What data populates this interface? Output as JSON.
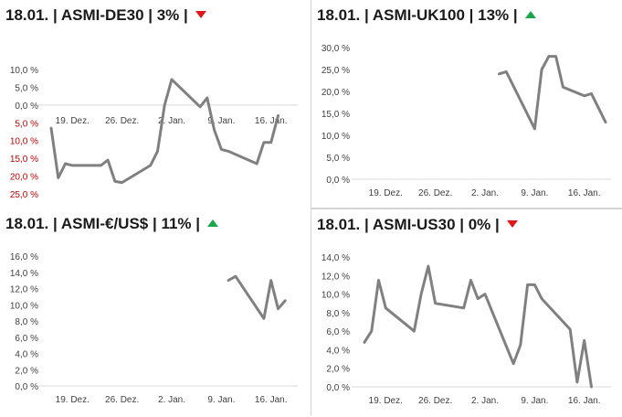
{
  "colors": {
    "line": "#808080",
    "up": "#1aa64a",
    "down": "#e01818",
    "negative_tick": "#c00000",
    "axis": "#d9d9d9"
  },
  "chart_data": [
    {
      "type": "line",
      "title": "18.01. | ASMI-DE30 | 3% |",
      "trend": "down",
      "trend_icon": "down-triangle-icon",
      "ylim": [
        -25,
        10
      ],
      "y_tick_values": [
        10,
        5,
        0,
        -5,
        -10,
        -15,
        -20,
        -25
      ],
      "y_tick_labels": [
        "10,0 %",
        "5,0 %",
        "0,0 %",
        "5,0 %",
        "10,0 %",
        "15,0 %",
        "20,0 %",
        "25,0 %"
      ],
      "negative_ticks_red": true,
      "x_range": [
        "2022-12-16",
        "2023-01-19"
      ],
      "x_ticks": [
        {
          "date": "2022-12-19",
          "label": "19. Dez."
        },
        {
          "date": "2022-12-26",
          "label": "26. Dez."
        },
        {
          "date": "2023-01-02",
          "label": "2. Jan."
        },
        {
          "date": "2023-01-09",
          "label": "9. Jan."
        },
        {
          "date": "2023-01-16",
          "label": "16. Jan."
        }
      ],
      "series": [
        {
          "points": [
            {
              "x": "2022-12-16",
              "y": -6.5
            },
            {
              "x": "2022-12-17",
              "y": -20.5
            },
            {
              "x": "2022-12-18",
              "y": -16.5
            },
            {
              "x": "2022-12-19",
              "y": -17.0
            },
            {
              "x": "2022-12-23",
              "y": -17.0
            },
            {
              "x": "2022-12-24",
              "y": -15.5
            },
            {
              "x": "2022-12-25",
              "y": -21.5
            },
            {
              "x": "2022-12-26",
              "y": -21.8
            },
            {
              "x": "2022-12-30",
              "y": -17.0
            },
            {
              "x": "2022-12-31",
              "y": -13.0
            },
            {
              "x": "2023-01-01",
              "y": 0.0
            },
            {
              "x": "2023-01-02",
              "y": 7.2
            },
            {
              "x": "2023-01-06",
              "y": -0.5
            },
            {
              "x": "2023-01-07",
              "y": 2.0
            },
            {
              "x": "2023-01-08",
              "y": -7.0
            },
            {
              "x": "2023-01-09",
              "y": -12.5
            },
            {
              "x": "2023-01-10",
              "y": -13.0
            },
            {
              "x": "2023-01-14",
              "y": -16.5
            },
            {
              "x": "2023-01-15",
              "y": -10.5
            },
            {
              "x": "2023-01-16",
              "y": -10.5
            },
            {
              "x": "2023-01-17",
              "y": -3.0
            }
          ]
        }
      ]
    },
    {
      "type": "line",
      "title": "18.01. | ASMI-UK100 | 13% |",
      "trend": "up",
      "trend_icon": "up-triangle-icon",
      "ylim": [
        0,
        30
      ],
      "y_tick_values": [
        30,
        25,
        20,
        15,
        10,
        5,
        0
      ],
      "y_tick_labels": [
        "30,0 %",
        "25,0 %",
        "20,0 %",
        "15,0 %",
        "10,0 %",
        "5,0 %",
        "0,0 %"
      ],
      "negative_ticks_red": false,
      "x_range": [
        "2022-12-16",
        "2023-01-19"
      ],
      "x_ticks": [
        {
          "date": "2022-12-19",
          "label": "19. Dez."
        },
        {
          "date": "2022-12-26",
          "label": "26. Dez."
        },
        {
          "date": "2023-01-02",
          "label": "2. Jan."
        },
        {
          "date": "2023-01-09",
          "label": "9. Jan."
        },
        {
          "date": "2023-01-16",
          "label": "16. Jan."
        }
      ],
      "series": [
        {
          "points": [
            {
              "x": "2023-01-04",
              "y": 24.0
            },
            {
              "x": "2023-01-05",
              "y": 24.5
            },
            {
              "x": "2023-01-09",
              "y": 11.5
            },
            {
              "x": "2023-01-10",
              "y": 25.0
            },
            {
              "x": "2023-01-11",
              "y": 28.0
            },
            {
              "x": "2023-01-12",
              "y": 28.0
            },
            {
              "x": "2023-01-13",
              "y": 21.0
            },
            {
              "x": "2023-01-16",
              "y": 19.0
            },
            {
              "x": "2023-01-17",
              "y": 19.5
            },
            {
              "x": "2023-01-19",
              "y": 13.0
            }
          ]
        }
      ]
    },
    {
      "type": "line",
      "title": "18.01. | ASMI-€/US$ | 11% |",
      "trend": "up",
      "trend_icon": "up-triangle-icon",
      "ylim": [
        0,
        16
      ],
      "y_tick_values": [
        16,
        14,
        12,
        10,
        8,
        6,
        4,
        2,
        0
      ],
      "y_tick_labels": [
        "16,0 %",
        "14,0 %",
        "12,0 %",
        "10,0 %",
        "8,0 %",
        "6,0 %",
        "4,0 %",
        "2,0 %",
        "0,0 %"
      ],
      "negative_ticks_red": false,
      "x_range": [
        "2022-12-16",
        "2023-01-19"
      ],
      "x_ticks": [
        {
          "date": "2022-12-19",
          "label": "19. Dez."
        },
        {
          "date": "2022-12-26",
          "label": "26. Dez."
        },
        {
          "date": "2023-01-02",
          "label": "2. Jan."
        },
        {
          "date": "2023-01-09",
          "label": "9. Jan."
        },
        {
          "date": "2023-01-16",
          "label": "16. Jan."
        }
      ],
      "series": [
        {
          "points": [
            {
              "x": "2023-01-10",
              "y": 13.0
            },
            {
              "x": "2023-01-11",
              "y": 13.5
            },
            {
              "x": "2023-01-15",
              "y": 8.3
            },
            {
              "x": "2023-01-16",
              "y": 13.0
            },
            {
              "x": "2023-01-17",
              "y": 9.5
            },
            {
              "x": "2023-01-18",
              "y": 10.5
            }
          ]
        }
      ]
    },
    {
      "type": "line",
      "title": "18.01. | ASMI-US30 | 0% |",
      "trend": "down",
      "trend_icon": "down-triangle-icon",
      "ylim": [
        0,
        14
      ],
      "y_tick_values": [
        14,
        12,
        10,
        8,
        6,
        4,
        2,
        0
      ],
      "y_tick_labels": [
        "14,0 %",
        "12,0 %",
        "10,0 %",
        "8,0 %",
        "6,0 %",
        "4,0 %",
        "2,0 %",
        "0,0 %"
      ],
      "negative_ticks_red": false,
      "x_range": [
        "2022-12-16",
        "2023-01-19"
      ],
      "x_ticks": [
        {
          "date": "2022-12-19",
          "label": "19. Dez."
        },
        {
          "date": "2022-12-26",
          "label": "26. Dez."
        },
        {
          "date": "2023-01-02",
          "label": "2. Jan."
        },
        {
          "date": "2023-01-09",
          "label": "9. Jan."
        },
        {
          "date": "2023-01-16",
          "label": "16. Jan."
        }
      ],
      "series": [
        {
          "points": [
            {
              "x": "2022-12-16",
              "y": 4.8
            },
            {
              "x": "2022-12-17",
              "y": 6.0
            },
            {
              "x": "2022-12-18",
              "y": 11.5
            },
            {
              "x": "2022-12-19",
              "y": 8.5
            },
            {
              "x": "2022-12-23",
              "y": 6.0
            },
            {
              "x": "2022-12-24",
              "y": 10.0
            },
            {
              "x": "2022-12-25",
              "y": 13.0
            },
            {
              "x": "2022-12-26",
              "y": 9.0
            },
            {
              "x": "2022-12-30",
              "y": 8.5
            },
            {
              "x": "2022-12-31",
              "y": 11.5
            },
            {
              "x": "2023-01-01",
              "y": 9.5
            },
            {
              "x": "2023-01-02",
              "y": 10.0
            },
            {
              "x": "2023-01-06",
              "y": 2.5
            },
            {
              "x": "2023-01-07",
              "y": 4.5
            },
            {
              "x": "2023-01-08",
              "y": 11.0
            },
            {
              "x": "2023-01-09",
              "y": 11.0
            },
            {
              "x": "2023-01-10",
              "y": 9.5
            },
            {
              "x": "2023-01-14",
              "y": 6.2
            },
            {
              "x": "2023-01-15",
              "y": 0.5
            },
            {
              "x": "2023-01-16",
              "y": 5.0
            },
            {
              "x": "2023-01-17",
              "y": 0.0
            }
          ]
        }
      ]
    }
  ]
}
